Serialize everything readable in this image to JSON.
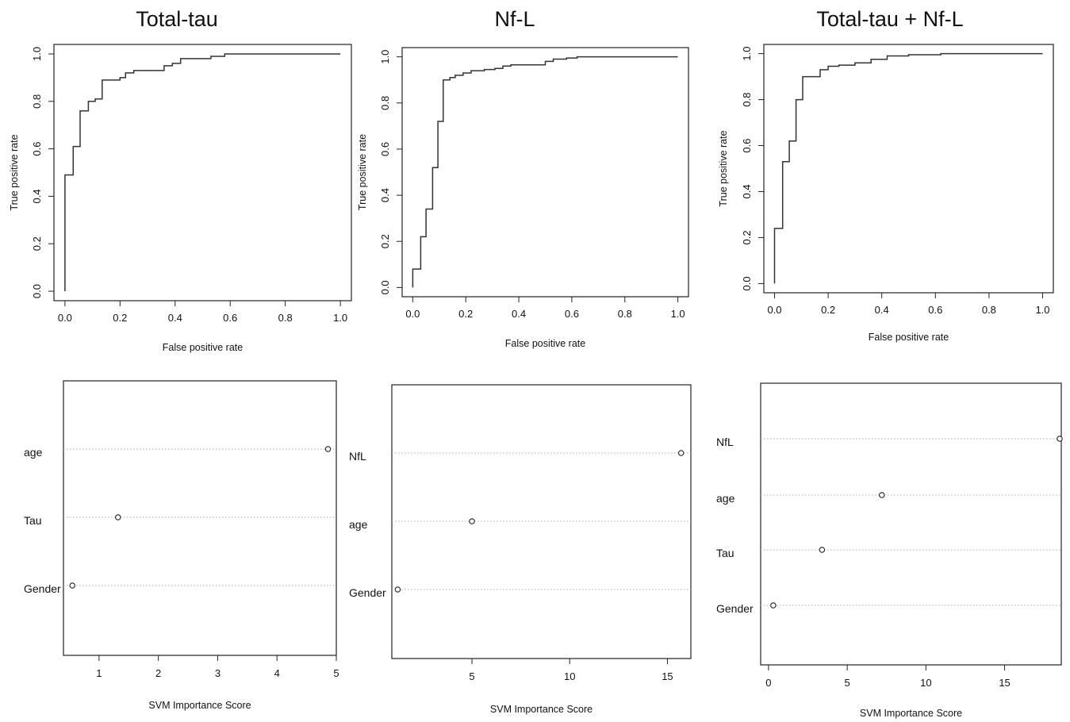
{
  "chart_data": [
    {
      "type": "line",
      "title": "Total-tau",
      "xlabel": "False positive rate",
      "ylabel": "True positive rate",
      "xlim": [
        0,
        1
      ],
      "ylim": [
        0,
        1
      ],
      "xticks": [
        "0.0",
        "0.2",
        "0.4",
        "0.6",
        "0.8",
        "1.0"
      ],
      "yticks": [
        "0.0",
        "0.2",
        "0.4",
        "0.6",
        "0.8",
        "1.0"
      ],
      "series": [
        {
          "x": [
            0,
            0,
            0.03,
            0.03,
            0.055,
            0.055,
            0.085,
            0.085,
            0.11,
            0.11,
            0.135,
            0.135,
            0.2,
            0.2,
            0.22,
            0.22,
            0.25,
            0.25,
            0.36,
            0.36,
            0.39,
            0.39,
            0.42,
            0.42,
            0.53,
            0.53,
            0.58,
            0.58,
            1.0
          ],
          "y": [
            0,
            0.49,
            0.49,
            0.61,
            0.61,
            0.76,
            0.76,
            0.8,
            0.8,
            0.81,
            0.81,
            0.89,
            0.89,
            0.9,
            0.9,
            0.92,
            0.92,
            0.93,
            0.93,
            0.95,
            0.95,
            0.96,
            0.96,
            0.98,
            0.98,
            0.99,
            0.99,
            1.0,
            1.0
          ]
        }
      ]
    },
    {
      "type": "line",
      "title": "Nf-L",
      "xlabel": "False positive rate",
      "ylabel": "True positive rate",
      "xlim": [
        0,
        1
      ],
      "ylim": [
        0,
        1
      ],
      "xticks": [
        "0.0",
        "0.2",
        "0.4",
        "0.6",
        "0.8",
        "1.0"
      ],
      "yticks": [
        "0.0",
        "0.2",
        "0.4",
        "0.6",
        "0.8",
        "1.0"
      ],
      "series": [
        {
          "x": [
            0,
            0,
            0.03,
            0.03,
            0.05,
            0.05,
            0.075,
            0.075,
            0.095,
            0.095,
            0.115,
            0.115,
            0.14,
            0.14,
            0.16,
            0.16,
            0.19,
            0.19,
            0.22,
            0.22,
            0.27,
            0.27,
            0.31,
            0.31,
            0.34,
            0.34,
            0.37,
            0.37,
            0.5,
            0.5,
            0.53,
            0.53,
            0.58,
            0.58,
            0.62,
            0.62,
            1.0
          ],
          "y": [
            0,
            0.08,
            0.08,
            0.22,
            0.22,
            0.34,
            0.34,
            0.52,
            0.52,
            0.72,
            0.72,
            0.9,
            0.9,
            0.91,
            0.91,
            0.92,
            0.92,
            0.93,
            0.93,
            0.94,
            0.94,
            0.945,
            0.945,
            0.95,
            0.95,
            0.96,
            0.96,
            0.965,
            0.965,
            0.98,
            0.98,
            0.99,
            0.99,
            0.995,
            0.995,
            1.0,
            1.0
          ]
        }
      ]
    },
    {
      "type": "line",
      "title": "Total-tau + Nf-L",
      "xlabel": "False positive rate",
      "ylabel": "True positive rate",
      "xlim": [
        0,
        1
      ],
      "ylim": [
        0,
        1
      ],
      "xticks": [
        "0.0",
        "0.2",
        "0.4",
        "0.6",
        "0.8",
        "1.0"
      ],
      "yticks": [
        "0.0",
        "0.2",
        "0.4",
        "0.6",
        "0.8",
        "1.0"
      ],
      "series": [
        {
          "x": [
            0,
            0,
            0.03,
            0.03,
            0.055,
            0.055,
            0.08,
            0.08,
            0.105,
            0.105,
            0.17,
            0.17,
            0.2,
            0.2,
            0.24,
            0.24,
            0.3,
            0.3,
            0.36,
            0.36,
            0.42,
            0.42,
            0.5,
            0.5,
            0.62,
            0.62,
            1.0
          ],
          "y": [
            0,
            0.24,
            0.24,
            0.53,
            0.53,
            0.62,
            0.62,
            0.8,
            0.8,
            0.9,
            0.9,
            0.93,
            0.93,
            0.945,
            0.945,
            0.95,
            0.95,
            0.96,
            0.96,
            0.975,
            0.975,
            0.99,
            0.99,
            0.995,
            0.995,
            1.0,
            1.0
          ]
        }
      ]
    },
    {
      "type": "scatter",
      "xlabel": "SVM Importance Score",
      "xlim": [
        0.4,
        5.0
      ],
      "xticks": [
        1,
        2,
        3,
        4,
        5
      ],
      "categories": [
        "age",
        "Tau",
        "Gender"
      ],
      "values": [
        4.86,
        1.32,
        0.55
      ]
    },
    {
      "type": "scatter",
      "xlabel": "SVM Importance Score",
      "xlim": [
        0.9,
        16.2
      ],
      "xticks": [
        5,
        10,
        15
      ],
      "categories": [
        "NfL",
        "age",
        "Gender"
      ],
      "values": [
        15.7,
        5.0,
        1.2
      ]
    },
    {
      "type": "scatter",
      "xlabel": "SVM Importance Score",
      "xlim": [
        -0.5,
        18.6
      ],
      "xticks": [
        0,
        5,
        10,
        15
      ],
      "categories": [
        "NfL",
        "age",
        "Tau",
        "Gender"
      ],
      "values": [
        18.5,
        7.2,
        3.4,
        0.3
      ]
    }
  ]
}
